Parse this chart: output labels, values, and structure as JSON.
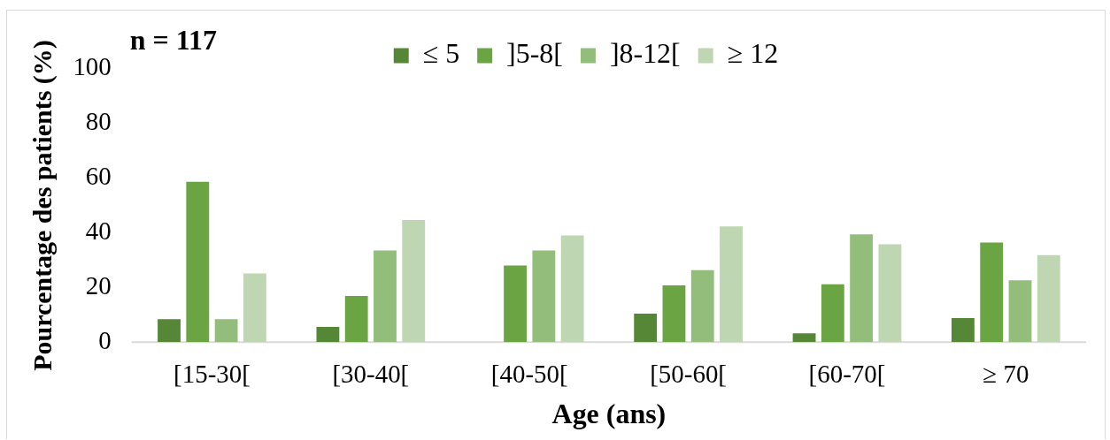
{
  "chart_data": {
    "type": "bar",
    "categories": [
      "[15-30[",
      "[30-40[",
      "[40-50[",
      "[50-60[",
      "[60-70[",
      "≥ 70"
    ],
    "series": [
      {
        "name": "≤ 5",
        "color": "#558737",
        "values": [
          8.4,
          5.6,
          0,
          10.4,
          3.2,
          8.8
        ]
      },
      {
        "name": "]5-8[",
        "color": "#6aa443",
        "values": [
          58.7,
          16.9,
          28,
          20.8,
          21.2,
          36.4
        ]
      },
      {
        "name": "]8-12[",
        "color": "#93bd7a",
        "values": [
          8.4,
          33.5,
          33.5,
          26.3,
          39.4,
          22.6
        ]
      },
      {
        "name": "≥ 12",
        "color": "#bed6b1",
        "values": [
          25.1,
          44.7,
          39,
          42.3,
          35.8,
          31.8
        ]
      }
    ],
    "xlabel": "Age (ans)",
    "ylabel": "Pourcentage des patients (%)",
    "ylim": [
      0,
      100
    ],
    "yticks": [
      0,
      20,
      40,
      60,
      80,
      100
    ],
    "grid": false,
    "legend": "top",
    "annotations": [
      "n = 117"
    ]
  }
}
